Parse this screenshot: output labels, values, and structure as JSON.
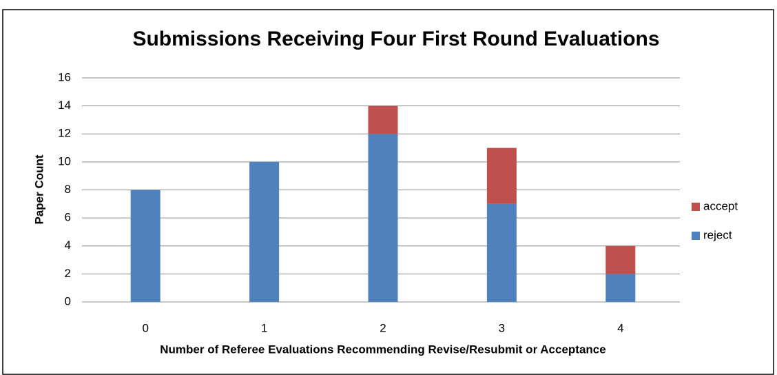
{
  "chart_data": {
    "type": "stacked_bar",
    "title": "Submissions Receiving Four First Round Evaluations",
    "x_label": "Number of Referee Evaluations Recommending Revise/Resubmit or Acceptance",
    "y_label": "Paper Count",
    "categories": [
      "0",
      "1",
      "2",
      "3",
      "4"
    ],
    "series": [
      {
        "name": "reject",
        "color": "#4f81bd",
        "values": [
          8,
          10,
          12,
          7,
          2
        ]
      },
      {
        "name": "accept",
        "color": "#c0504d",
        "values": [
          0,
          0,
          2,
          4,
          2
        ]
      }
    ],
    "ylim": [
      0,
      16
    ],
    "yticks": [
      0,
      2,
      4,
      6,
      8,
      10,
      12,
      14,
      16
    ],
    "grid": true,
    "legend": "right"
  }
}
